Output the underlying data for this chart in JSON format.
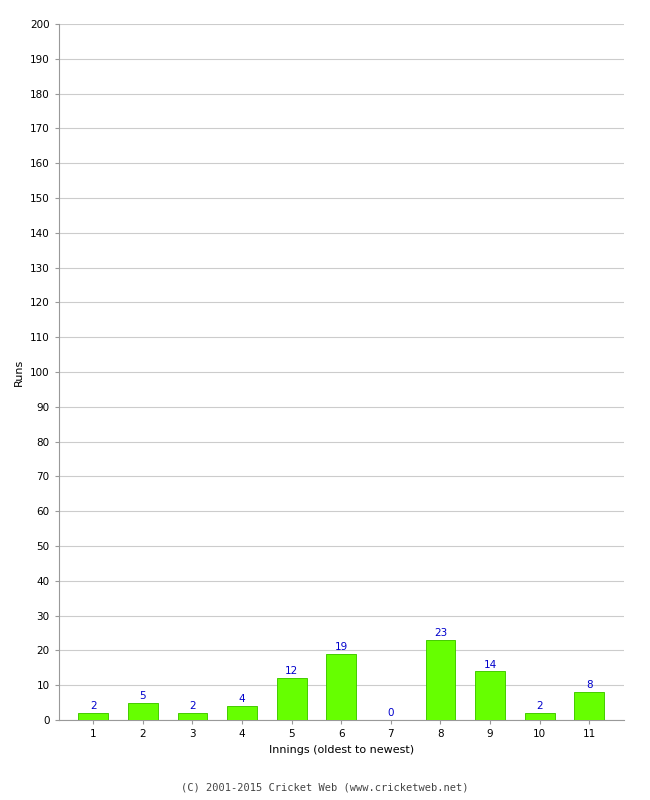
{
  "xlabel": "Innings (oldest to newest)",
  "ylabel": "Runs",
  "categories": [
    "1",
    "2",
    "3",
    "4",
    "5",
    "6",
    "7",
    "8",
    "9",
    "10",
    "11"
  ],
  "values": [
    2,
    5,
    2,
    4,
    12,
    19,
    0,
    23,
    14,
    2,
    8
  ],
  "bar_color": "#66ff00",
  "bar_edge_color": "#44cc00",
  "label_color": "#0000cc",
  "ylim": [
    0,
    200
  ],
  "yticks": [
    0,
    10,
    20,
    30,
    40,
    50,
    60,
    70,
    80,
    90,
    100,
    110,
    120,
    130,
    140,
    150,
    160,
    170,
    180,
    190,
    200
  ],
  "background_color": "#ffffff",
  "grid_color": "#cccccc",
  "footer": "(C) 2001-2015 Cricket Web (www.cricketweb.net)",
  "label_fontsize": 7.5,
  "axis_label_fontsize": 8,
  "tick_fontsize": 7.5,
  "footer_fontsize": 7.5
}
